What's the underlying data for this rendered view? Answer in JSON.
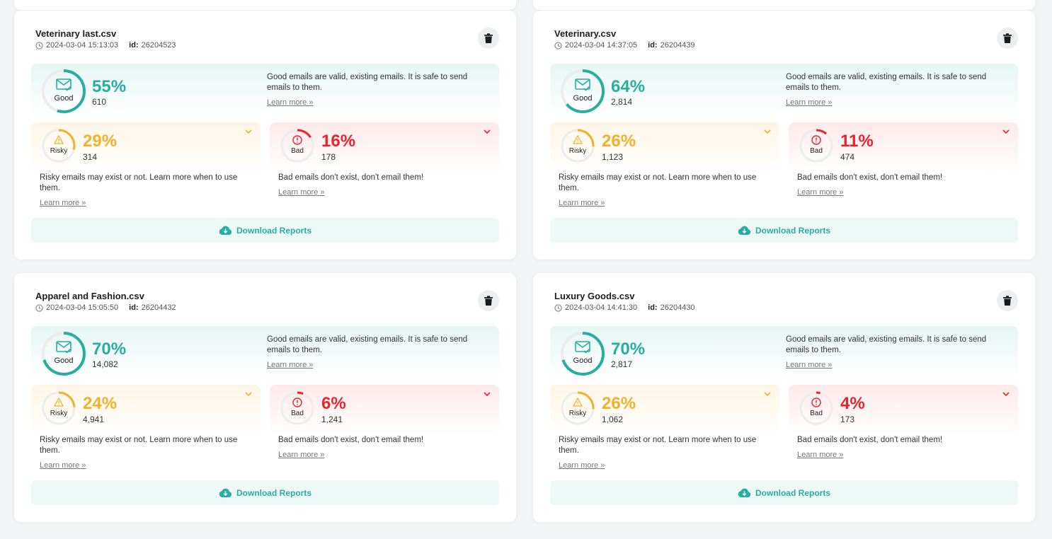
{
  "colors": {
    "good": "#28aea0",
    "risky": "#f0b22c",
    "bad": "#e8232f",
    "track": "#ececec"
  },
  "labels": {
    "good": "Good",
    "risky": "Risky",
    "bad": "Bad",
    "good_desc": "Good emails are valid, existing emails. It is safe to send emails to them.",
    "risky_desc": "Risky emails may exist or not. Learn more when to use them.",
    "bad_desc": "Bad emails don't exist, don't email them!",
    "learn_more": "Learn more »",
    "download": "Download Reports",
    "id_label": "id:"
  },
  "cards": [
    {
      "file": "Veterinary last.csv",
      "date": "2024-03-04 15:13:03",
      "id": "26204523",
      "good_pct": "55%",
      "good_count": "610",
      "risky_pct": "29%",
      "risky_count": "314",
      "bad_pct": "16%",
      "bad_count": "178",
      "good_frac": 0.55,
      "risky_frac": 0.29,
      "bad_frac": 0.16
    },
    {
      "file": "Veterinary.csv",
      "date": "2024-03-04 14:37:05",
      "id": "26204439",
      "good_pct": "64%",
      "good_count": "2,814",
      "risky_pct": "26%",
      "risky_count": "1,123",
      "bad_pct": "11%",
      "bad_count": "474",
      "good_frac": 0.64,
      "risky_frac": 0.26,
      "bad_frac": 0.11
    },
    {
      "file": "Apparel and Fashion.csv",
      "date": "2024-03-04 15:05:50",
      "id": "26204432",
      "good_pct": "70%",
      "good_count": "14,082",
      "risky_pct": "24%",
      "risky_count": "4,941",
      "bad_pct": "6%",
      "bad_count": "1,241",
      "good_frac": 0.7,
      "risky_frac": 0.24,
      "bad_frac": 0.06
    },
    {
      "file": "Luxury Goods.csv",
      "date": "2024-03-04 14:41:30",
      "id": "26204430",
      "good_pct": "70%",
      "good_count": "2,817",
      "risky_pct": "26%",
      "risky_count": "1,062",
      "bad_pct": "4%",
      "bad_count": "173",
      "good_frac": 0.7,
      "risky_frac": 0.26,
      "bad_frac": 0.04
    }
  ]
}
